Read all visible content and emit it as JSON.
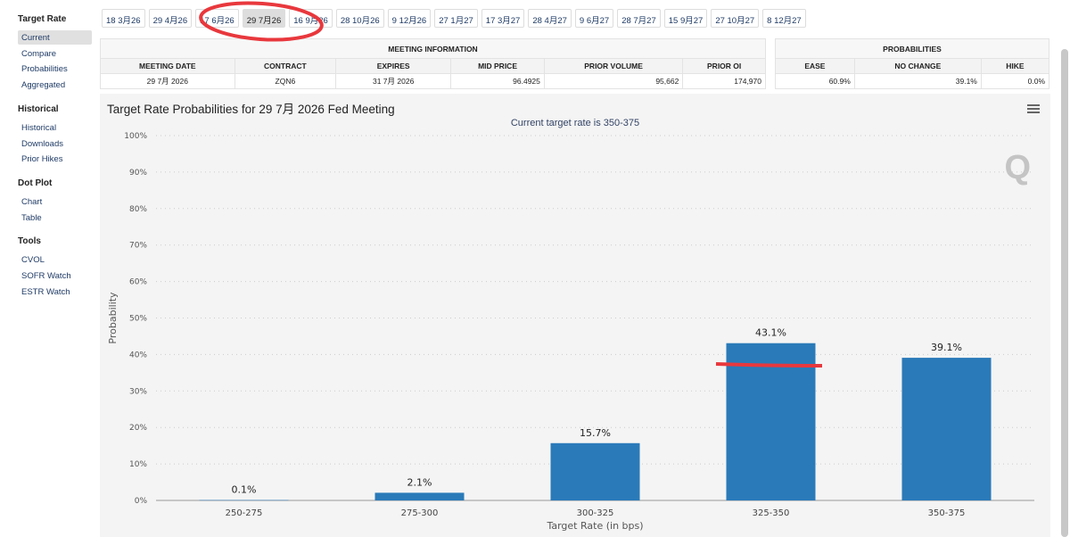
{
  "sidebar": {
    "sections": [
      {
        "title": "Target Rate",
        "items": [
          "Current",
          "Compare",
          "Probabilities",
          "Aggregated"
        ]
      },
      {
        "title": "Historical",
        "items": [
          "Historical",
          "Downloads",
          "Prior Hikes"
        ]
      },
      {
        "title": "Dot Plot",
        "items": [
          "Chart",
          "Table"
        ]
      },
      {
        "title": "Tools",
        "items": [
          "CVOL",
          "SOFR Watch",
          "ESTR Watch"
        ]
      }
    ]
  },
  "tabs": [
    "18 3月26",
    "29 4月26",
    "17 6月26",
    "29 7月26",
    "16 9月26",
    "28 10月26",
    "9 12月26",
    "27 1月27",
    "17 3月27",
    "28 4月27",
    "9 6月27",
    "28 7月27",
    "15 9月27",
    "27 10月27",
    "8 12月27"
  ],
  "meeting": {
    "title": "MEETING INFORMATION",
    "headers": [
      "MEETING DATE",
      "CONTRACT",
      "EXPIRES",
      "MID PRICE",
      "PRIOR VOLUME",
      "PRIOR OI"
    ],
    "values": [
      "29 7月 2026",
      "ZQN6",
      "31 7月 2026",
      "96.4925",
      "95,662",
      "174,970"
    ]
  },
  "probs": {
    "title": "PROBABILITIES",
    "headers": [
      "EASE",
      "NO CHANGE",
      "HIKE"
    ],
    "values": [
      "60.9%",
      "39.1%",
      "0.0%"
    ]
  },
  "chart_data": {
    "type": "bar",
    "title": "Target Rate Probabilities for 29 7月 2026 Fed Meeting",
    "subtitle": "Current target rate is 350-375",
    "xlabel": "Target Rate (in bps)",
    "ylabel": "Probability",
    "categories": [
      "250-275",
      "275-300",
      "300-325",
      "325-350",
      "350-375"
    ],
    "values": [
      0.1,
      2.1,
      15.7,
      43.1,
      39.1
    ],
    "labels": [
      "0.1%",
      "2.1%",
      "15.7%",
      "43.1%",
      "39.1%"
    ],
    "ylim": [
      0,
      100
    ],
    "yticks": [
      "0%",
      "10%",
      "20%",
      "30%",
      "40%",
      "50%",
      "60%",
      "70%",
      "80%",
      "90%",
      "100%"
    ],
    "color": "#2a7ab9"
  }
}
